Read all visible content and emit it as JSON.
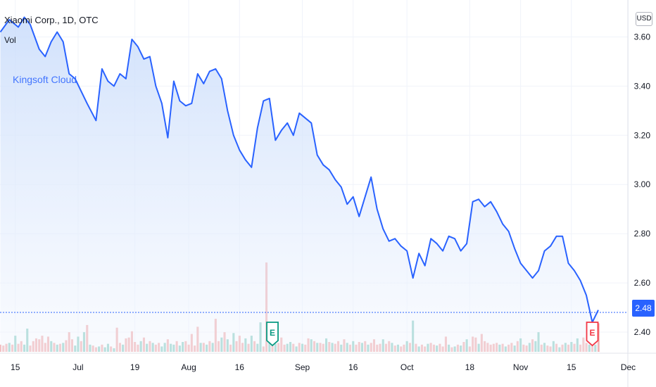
{
  "legend": {
    "title": "Xiaomi Corp., 1D, OTC",
    "vol_label": "Vol"
  },
  "annotation": "Kingsoft Cloud",
  "currency_button": "USD",
  "last_price_label": "2.48",
  "earnings_markers": [
    {
      "label": "E",
      "color": "#089981",
      "x_index": 91,
      "volume_level": "low"
    },
    {
      "label": "E",
      "color": "#f23645",
      "x_index": 198,
      "volume_level": "low"
    }
  ],
  "colors": {
    "line": "#2962ff",
    "area_top": "#c9dcfb",
    "area_bottom": "#f3f7fe",
    "vol_up": "#7fc9bd",
    "vol_down": "#f1a5a5",
    "grid": "#f0f3fa"
  },
  "chart_data": {
    "type": "area",
    "title": "Xiaomi Corp., 1D, OTC",
    "xlabel": "",
    "ylabel": "",
    "y_unit": "USD",
    "ylim": [
      2.32,
      3.75
    ],
    "y_ticks": [
      "3.60",
      "3.40",
      "3.20",
      "3.00",
      "2.80",
      "2.60",
      "2.40"
    ],
    "x_ticks": [
      {
        "label": "15",
        "i": 5
      },
      {
        "label": "Jul",
        "i": 26
      },
      {
        "label": "19",
        "i": 45
      },
      {
        "label": "Aug",
        "i": 63
      },
      {
        "label": "16",
        "i": 80
      },
      {
        "label": "Sep",
        "i": 101
      },
      {
        "label": "16",
        "i": 118
      },
      {
        "label": "Oct",
        "i": 136
      },
      {
        "label": "18",
        "i": 157
      },
      {
        "label": "Nov",
        "i": 174
      },
      {
        "label": "15",
        "i": 191
      },
      {
        "label": "Dec",
        "i": 210
      }
    ],
    "last_value": 2.48,
    "series_anchor_points": [
      [
        0,
        3.62
      ],
      [
        3,
        3.67
      ],
      [
        6,
        3.64
      ],
      [
        8,
        3.68
      ],
      [
        10,
        3.65
      ],
      [
        13,
        3.55
      ],
      [
        15,
        3.52
      ],
      [
        17,
        3.58
      ],
      [
        19,
        3.62
      ],
      [
        21,
        3.58
      ],
      [
        23,
        3.45
      ],
      [
        25,
        3.43
      ],
      [
        27,
        3.38
      ],
      [
        29,
        3.33
      ],
      [
        32,
        3.26
      ],
      [
        34,
        3.47
      ],
      [
        36,
        3.42
      ],
      [
        38,
        3.4
      ],
      [
        40,
        3.45
      ],
      [
        42,
        3.43
      ],
      [
        44,
        3.59
      ],
      [
        46,
        3.56
      ],
      [
        48,
        3.51
      ],
      [
        50,
        3.52
      ],
      [
        52,
        3.4
      ],
      [
        54,
        3.33
      ],
      [
        56,
        3.19
      ],
      [
        58,
        3.42
      ],
      [
        60,
        3.34
      ],
      [
        62,
        3.32
      ],
      [
        64,
        3.33
      ],
      [
        66,
        3.45
      ],
      [
        68,
        3.41
      ],
      [
        70,
        3.46
      ],
      [
        72,
        3.47
      ],
      [
        74,
        3.43
      ],
      [
        76,
        3.3
      ],
      [
        78,
        3.2
      ],
      [
        80,
        3.14
      ],
      [
        82,
        3.1
      ],
      [
        84,
        3.07
      ],
      [
        86,
        3.23
      ],
      [
        88,
        3.34
      ],
      [
        90,
        3.35
      ],
      [
        92,
        3.18
      ],
      [
        94,
        3.22
      ],
      [
        96,
        3.25
      ],
      [
        98,
        3.2
      ],
      [
        100,
        3.29
      ],
      [
        102,
        3.27
      ],
      [
        104,
        3.25
      ],
      [
        106,
        3.12
      ],
      [
        108,
        3.08
      ],
      [
        110,
        3.06
      ],
      [
        112,
        3.02
      ],
      [
        114,
        2.99
      ],
      [
        116,
        2.92
      ],
      [
        118,
        2.95
      ],
      [
        120,
        2.87
      ],
      [
        122,
        2.95
      ],
      [
        124,
        3.03
      ],
      [
        126,
        2.9
      ],
      [
        128,
        2.82
      ],
      [
        130,
        2.77
      ],
      [
        132,
        2.78
      ],
      [
        134,
        2.75
      ],
      [
        136,
        2.73
      ],
      [
        138,
        2.62
      ],
      [
        140,
        2.72
      ],
      [
        142,
        2.67
      ],
      [
        144,
        2.78
      ],
      [
        146,
        2.76
      ],
      [
        148,
        2.73
      ],
      [
        150,
        2.79
      ],
      [
        152,
        2.78
      ],
      [
        154,
        2.73
      ],
      [
        156,
        2.76
      ],
      [
        158,
        2.93
      ],
      [
        160,
        2.94
      ],
      [
        162,
        2.91
      ],
      [
        164,
        2.93
      ],
      [
        166,
        2.89
      ],
      [
        168,
        2.84
      ],
      [
        170,
        2.81
      ],
      [
        172,
        2.74
      ],
      [
        174,
        2.68
      ],
      [
        176,
        2.65
      ],
      [
        178,
        2.62
      ],
      [
        180,
        2.65
      ],
      [
        182,
        2.73
      ],
      [
        184,
        2.75
      ],
      [
        186,
        2.79
      ],
      [
        188,
        2.79
      ],
      [
        190,
        2.68
      ],
      [
        192,
        2.65
      ],
      [
        194,
        2.61
      ],
      [
        196,
        2.55
      ],
      [
        198,
        2.44
      ],
      [
        200,
        2.49
      ]
    ],
    "volume": {
      "max_value": 100,
      "bars": [
        [
          0,
          8,
          "d"
        ],
        [
          1,
          7,
          "d"
        ],
        [
          2,
          9,
          "d"
        ],
        [
          3,
          10,
          "u"
        ],
        [
          4,
          8,
          "d"
        ],
        [
          5,
          18,
          "u"
        ],
        [
          6,
          9,
          "d"
        ],
        [
          7,
          12,
          "d"
        ],
        [
          8,
          8,
          "u"
        ],
        [
          9,
          26,
          "u"
        ],
        [
          10,
          7,
          "d"
        ],
        [
          11,
          12,
          "d"
        ],
        [
          12,
          15,
          "d"
        ],
        [
          13,
          14,
          "d"
        ],
        [
          14,
          18,
          "d"
        ],
        [
          15,
          10,
          "d"
        ],
        [
          16,
          17,
          "d"
        ],
        [
          17,
          12,
          "u"
        ],
        [
          18,
          10,
          "d"
        ],
        [
          19,
          8,
          "u"
        ],
        [
          20,
          9,
          "d"
        ],
        [
          21,
          10,
          "u"
        ],
        [
          22,
          13,
          "d"
        ],
        [
          23,
          22,
          "d"
        ],
        [
          24,
          14,
          "d"
        ],
        [
          25,
          7,
          "u"
        ],
        [
          26,
          17,
          "u"
        ],
        [
          27,
          12,
          "d"
        ],
        [
          28,
          22,
          "u"
        ],
        [
          29,
          30,
          "d"
        ],
        [
          30,
          8,
          "u"
        ],
        [
          31,
          7,
          "d"
        ],
        [
          32,
          5,
          "d"
        ],
        [
          33,
          6,
          "u"
        ],
        [
          34,
          8,
          "d"
        ],
        [
          35,
          5,
          "u"
        ],
        [
          36,
          9,
          "u"
        ],
        [
          37,
          6,
          "d"
        ],
        [
          38,
          4,
          "u"
        ],
        [
          39,
          27,
          "d"
        ],
        [
          40,
          10,
          "d"
        ],
        [
          41,
          8,
          "u"
        ],
        [
          42,
          15,
          "d"
        ],
        [
          43,
          16,
          "d"
        ],
        [
          44,
          23,
          "d"
        ],
        [
          45,
          11,
          "d"
        ],
        [
          46,
          8,
          "d"
        ],
        [
          47,
          12,
          "u"
        ],
        [
          48,
          16,
          "d"
        ],
        [
          49,
          9,
          "u"
        ],
        [
          50,
          12,
          "d"
        ],
        [
          51,
          10,
          "u"
        ],
        [
          52,
          8,
          "d"
        ],
        [
          53,
          10,
          "d"
        ],
        [
          54,
          6,
          "u"
        ],
        [
          55,
          10,
          "u"
        ],
        [
          56,
          14,
          "d"
        ],
        [
          57,
          9,
          "u"
        ],
        [
          58,
          8,
          "u"
        ],
        [
          59,
          12,
          "d"
        ],
        [
          60,
          7,
          "u"
        ],
        [
          61,
          11,
          "u"
        ],
        [
          62,
          12,
          "d"
        ],
        [
          63,
          8,
          "d"
        ],
        [
          64,
          20,
          "d"
        ],
        [
          65,
          7,
          "d"
        ],
        [
          66,
          28,
          "d"
        ],
        [
          67,
          10,
          "u"
        ],
        [
          68,
          10,
          "d"
        ],
        [
          69,
          8,
          "u"
        ],
        [
          70,
          12,
          "d"
        ],
        [
          71,
          10,
          "u"
        ],
        [
          72,
          37,
          "d"
        ],
        [
          73,
          12,
          "d"
        ],
        [
          74,
          16,
          "u"
        ],
        [
          75,
          22,
          "d"
        ],
        [
          76,
          14,
          "u"
        ],
        [
          77,
          8,
          "d"
        ],
        [
          78,
          21,
          "u"
        ],
        [
          79,
          12,
          "d"
        ],
        [
          80,
          18,
          "d"
        ],
        [
          81,
          10,
          "d"
        ],
        [
          82,
          15,
          "u"
        ],
        [
          83,
          9,
          "d"
        ],
        [
          84,
          18,
          "u"
        ],
        [
          85,
          12,
          "d"
        ],
        [
          86,
          9,
          "u"
        ],
        [
          87,
          33,
          "u"
        ],
        [
          88,
          6,
          "d"
        ],
        [
          89,
          100,
          "d"
        ],
        [
          90,
          10,
          "u"
        ],
        [
          91,
          12,
          "d"
        ],
        [
          92,
          9,
          "u"
        ],
        [
          93,
          10,
          "d"
        ],
        [
          94,
          16,
          "d"
        ],
        [
          95,
          8,
          "d"
        ],
        [
          96,
          9,
          "u"
        ],
        [
          97,
          11,
          "u"
        ],
        [
          98,
          9,
          "d"
        ],
        [
          99,
          6,
          "u"
        ],
        [
          100,
          10,
          "d"
        ],
        [
          101,
          9,
          "u"
        ],
        [
          102,
          8,
          "d"
        ],
        [
          103,
          15,
          "d"
        ],
        [
          104,
          14,
          "u"
        ],
        [
          105,
          12,
          "d"
        ],
        [
          106,
          10,
          "u"
        ],
        [
          107,
          10,
          "d"
        ],
        [
          108,
          9,
          "d"
        ],
        [
          109,
          15,
          "u"
        ],
        [
          110,
          11,
          "d"
        ],
        [
          111,
          10,
          "u"
        ],
        [
          112,
          9,
          "d"
        ],
        [
          113,
          12,
          "d"
        ],
        [
          114,
          8,
          "u"
        ],
        [
          115,
          14,
          "d"
        ],
        [
          116,
          10,
          "u"
        ],
        [
          117,
          8,
          "d"
        ],
        [
          118,
          12,
          "u"
        ],
        [
          119,
          8,
          "d"
        ],
        [
          120,
          11,
          "d"
        ],
        [
          121,
          10,
          "u"
        ],
        [
          122,
          12,
          "d"
        ],
        [
          123,
          8,
          "u"
        ],
        [
          124,
          10,
          "d"
        ],
        [
          125,
          14,
          "d"
        ],
        [
          126,
          8,
          "d"
        ],
        [
          127,
          9,
          "d"
        ],
        [
          128,
          14,
          "u"
        ],
        [
          129,
          9,
          "d"
        ],
        [
          130,
          12,
          "d"
        ],
        [
          131,
          10,
          "u"
        ],
        [
          132,
          7,
          "d"
        ],
        [
          133,
          8,
          "u"
        ],
        [
          134,
          6,
          "d"
        ],
        [
          135,
          8,
          "d"
        ],
        [
          136,
          12,
          "u"
        ],
        [
          137,
          10,
          "d"
        ],
        [
          138,
          35,
          "u"
        ],
        [
          139,
          9,
          "d"
        ],
        [
          140,
          6,
          "u"
        ],
        [
          141,
          8,
          "d"
        ],
        [
          142,
          6,
          "d"
        ],
        [
          143,
          9,
          "u"
        ],
        [
          144,
          10,
          "d"
        ],
        [
          145,
          8,
          "d"
        ],
        [
          146,
          7,
          "u"
        ],
        [
          147,
          9,
          "d"
        ],
        [
          148,
          6,
          "d"
        ],
        [
          149,
          17,
          "d"
        ],
        [
          150,
          8,
          "u"
        ],
        [
          151,
          5,
          "d"
        ],
        [
          152,
          6,
          "u"
        ],
        [
          153,
          8,
          "d"
        ],
        [
          154,
          7,
          "u"
        ],
        [
          155,
          11,
          "d"
        ],
        [
          156,
          14,
          "u"
        ],
        [
          157,
          6,
          "d"
        ],
        [
          158,
          17,
          "d"
        ],
        [
          159,
          16,
          "d"
        ],
        [
          160,
          9,
          "u"
        ],
        [
          161,
          20,
          "d"
        ],
        [
          162,
          12,
          "d"
        ],
        [
          163,
          10,
          "d"
        ],
        [
          164,
          8,
          "d"
        ],
        [
          165,
          9,
          "d"
        ],
        [
          166,
          10,
          "d"
        ],
        [
          167,
          8,
          "u"
        ],
        [
          168,
          9,
          "d"
        ],
        [
          169,
          6,
          "u"
        ],
        [
          170,
          8,
          "d"
        ],
        [
          171,
          10,
          "d"
        ],
        [
          172,
          7,
          "u"
        ],
        [
          173,
          12,
          "d"
        ],
        [
          174,
          15,
          "u"
        ],
        [
          175,
          8,
          "d"
        ],
        [
          176,
          7,
          "d"
        ],
        [
          177,
          10,
          "u"
        ],
        [
          178,
          14,
          "d"
        ],
        [
          179,
          12,
          "u"
        ],
        [
          180,
          22,
          "u"
        ],
        [
          181,
          8,
          "d"
        ],
        [
          182,
          10,
          "u"
        ],
        [
          183,
          7,
          "d"
        ],
        [
          184,
          6,
          "d"
        ],
        [
          185,
          12,
          "u"
        ],
        [
          186,
          9,
          "d"
        ],
        [
          187,
          5,
          "u"
        ],
        [
          188,
          8,
          "d"
        ],
        [
          189,
          10,
          "u"
        ],
        [
          190,
          8,
          "d"
        ],
        [
          191,
          11,
          "u"
        ],
        [
          192,
          9,
          "d"
        ],
        [
          193,
          15,
          "u"
        ],
        [
          194,
          8,
          "d"
        ],
        [
          195,
          16,
          "d"
        ],
        [
          196,
          10,
          "d"
        ],
        [
          197,
          8,
          "u"
        ],
        [
          198,
          12,
          "d"
        ],
        [
          199,
          8,
          "u"
        ],
        [
          200,
          32,
          "d"
        ]
      ]
    }
  }
}
